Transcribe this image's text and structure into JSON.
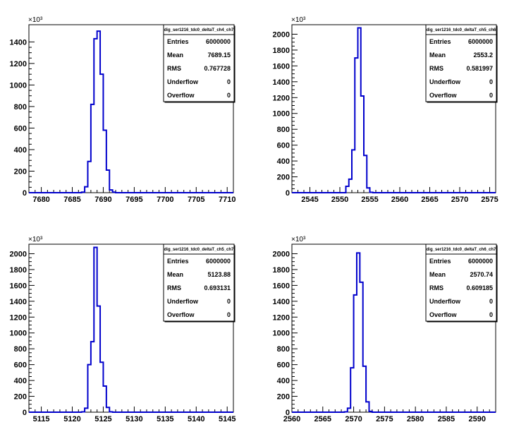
{
  "chart_data": [
    {
      "type": "bar",
      "hist_name": "dig_ser1216_tdc0_deltaT_ch4_ch7",
      "xlim": [
        7678,
        7711
      ],
      "ylim": [
        0,
        1560
      ],
      "y_multiplier": "×10³",
      "x_ticks": [
        7680,
        7685,
        7690,
        7695,
        7700,
        7705,
        7710
      ],
      "x_tick_labels": [
        "7680",
        "7685",
        "7690",
        "7695",
        "7700",
        "7705",
        "7710"
      ],
      "y_ticks": [
        0,
        200,
        400,
        600,
        800,
        1000,
        1200,
        1400
      ],
      "y_tick_labels": [
        "0",
        "200",
        "400",
        "600",
        "800",
        "1000",
        "1200",
        "1400"
      ],
      "bin_width": 0.5,
      "bins": [
        {
          "x": 7686.5,
          "y": 5
        },
        {
          "x": 7687.0,
          "y": 55
        },
        {
          "x": 7687.5,
          "y": 290
        },
        {
          "x": 7688.0,
          "y": 820
        },
        {
          "x": 7688.5,
          "y": 1430
        },
        {
          "x": 7689.0,
          "y": 1500
        },
        {
          "x": 7689.5,
          "y": 1100
        },
        {
          "x": 7690.0,
          "y": 580
        },
        {
          "x": 7690.5,
          "y": 210
        },
        {
          "x": 7691.0,
          "y": 25
        },
        {
          "x": 7691.5,
          "y": 5
        }
      ],
      "stats": [
        {
          "label": "Entries",
          "value": "6000000"
        },
        {
          "label": "Mean",
          "value": "7689.15"
        },
        {
          "label": "RMS",
          "value": "0.767728"
        },
        {
          "label": "Underflow",
          "value": "0"
        },
        {
          "label": "Overflow",
          "value": "0"
        }
      ]
    },
    {
      "type": "bar",
      "hist_name": "dig_ser1216_tdc0_deltaT_ch5_ch6",
      "xlim": [
        2542,
        2576
      ],
      "ylim": [
        0,
        2120
      ],
      "y_multiplier": "×10³",
      "x_ticks": [
        2545,
        2550,
        2555,
        2560,
        2565,
        2570,
        2575
      ],
      "x_tick_labels": [
        "2545",
        "2550",
        "2555",
        "2560",
        "2565",
        "2570",
        "2575"
      ],
      "y_ticks": [
        0,
        200,
        400,
        600,
        800,
        1000,
        1200,
        1400,
        1600,
        1800,
        2000
      ],
      "y_tick_labels": [
        "0",
        "200",
        "400",
        "600",
        "800",
        "1000",
        "1200",
        "1400",
        "1600",
        "1800",
        "2000"
      ],
      "bin_width": 0.5,
      "bins": [
        {
          "x": 2551.0,
          "y": 80
        },
        {
          "x": 2551.5,
          "y": 170
        },
        {
          "x": 2552.0,
          "y": 540
        },
        {
          "x": 2552.5,
          "y": 1700
        },
        {
          "x": 2553.0,
          "y": 2080
        },
        {
          "x": 2553.5,
          "y": 1220
        },
        {
          "x": 2554.0,
          "y": 470
        },
        {
          "x": 2554.5,
          "y": 60
        },
        {
          "x": 2555.0,
          "y": 5
        }
      ],
      "stats": [
        {
          "label": "Entries",
          "value": "6000000"
        },
        {
          "label": "Mean",
          "value": "2553.2"
        },
        {
          "label": "RMS",
          "value": "0.581997"
        },
        {
          "label": "Underflow",
          "value": "0"
        },
        {
          "label": "Overflow",
          "value": "0"
        }
      ]
    },
    {
      "type": "bar",
      "hist_name": "dig_ser1216_tdc0_deltaT_ch5_ch7",
      "xlim": [
        5113,
        5146
      ],
      "ylim": [
        0,
        2120
      ],
      "y_multiplier": "×10³",
      "x_ticks": [
        5115,
        5120,
        5125,
        5130,
        5135,
        5140,
        5145
      ],
      "x_tick_labels": [
        "5115",
        "5120",
        "5125",
        "5130",
        "5135",
        "5140",
        "5145"
      ],
      "y_ticks": [
        0,
        200,
        400,
        600,
        800,
        1000,
        1200,
        1400,
        1600,
        1800,
        2000
      ],
      "y_tick_labels": [
        "0",
        "200",
        "400",
        "600",
        "800",
        "1000",
        "1200",
        "1400",
        "1600",
        "1800",
        "2000"
      ],
      "bin_width": 0.5,
      "bins": [
        {
          "x": 5121.5,
          "y": 5
        },
        {
          "x": 5122.0,
          "y": 50
        },
        {
          "x": 5122.5,
          "y": 600
        },
        {
          "x": 5123.0,
          "y": 890
        },
        {
          "x": 5123.5,
          "y": 2080
        },
        {
          "x": 5124.0,
          "y": 1340
        },
        {
          "x": 5124.5,
          "y": 630
        },
        {
          "x": 5125.0,
          "y": 330
        },
        {
          "x": 5125.5,
          "y": 60
        },
        {
          "x": 5126.0,
          "y": 5
        }
      ],
      "stats": [
        {
          "label": "Entries",
          "value": "6000000"
        },
        {
          "label": "Mean",
          "value": "5123.88"
        },
        {
          "label": "RMS",
          "value": "0.693131"
        },
        {
          "label": "Underflow",
          "value": "0"
        },
        {
          "label": "Overflow",
          "value": "0"
        }
      ]
    },
    {
      "type": "bar",
      "hist_name": "dig_ser1216_tdc0_deltaT_ch6_ch7",
      "xlim": [
        2560,
        2593
      ],
      "ylim": [
        0,
        2120
      ],
      "y_multiplier": "×10³",
      "x_ticks": [
        2560,
        2565,
        2570,
        2575,
        2580,
        2585,
        2590
      ],
      "x_tick_labels": [
        "2560",
        "2565",
        "2570",
        "2575",
        "2580",
        "2585",
        "2590"
      ],
      "y_ticks": [
        0,
        200,
        400,
        600,
        800,
        1000,
        1200,
        1400,
        1600,
        1800,
        2000
      ],
      "y_tick_labels": [
        "0",
        "200",
        "400",
        "600",
        "800",
        "1000",
        "1200",
        "1400",
        "1600",
        "1800",
        "2000"
      ],
      "bin_width": 0.5,
      "bins": [
        {
          "x": 2568.5,
          "y": 5
        },
        {
          "x": 2569.0,
          "y": 50
        },
        {
          "x": 2569.5,
          "y": 560
        },
        {
          "x": 2570.0,
          "y": 1480
        },
        {
          "x": 2570.5,
          "y": 2010
        },
        {
          "x": 2571.0,
          "y": 1640
        },
        {
          "x": 2571.5,
          "y": 580
        },
        {
          "x": 2572.0,
          "y": 130
        },
        {
          "x": 2572.5,
          "y": 10
        }
      ],
      "stats": [
        {
          "label": "Entries",
          "value": "6000000"
        },
        {
          "label": "Mean",
          "value": "2570.74"
        },
        {
          "label": "RMS",
          "value": "0.609185"
        },
        {
          "label": "Underflow",
          "value": "0"
        },
        {
          "label": "Overflow",
          "value": "0"
        }
      ]
    }
  ],
  "colors": {
    "histogram_line": "#0000cc",
    "frame": "#000000",
    "background": "#ffffff"
  }
}
